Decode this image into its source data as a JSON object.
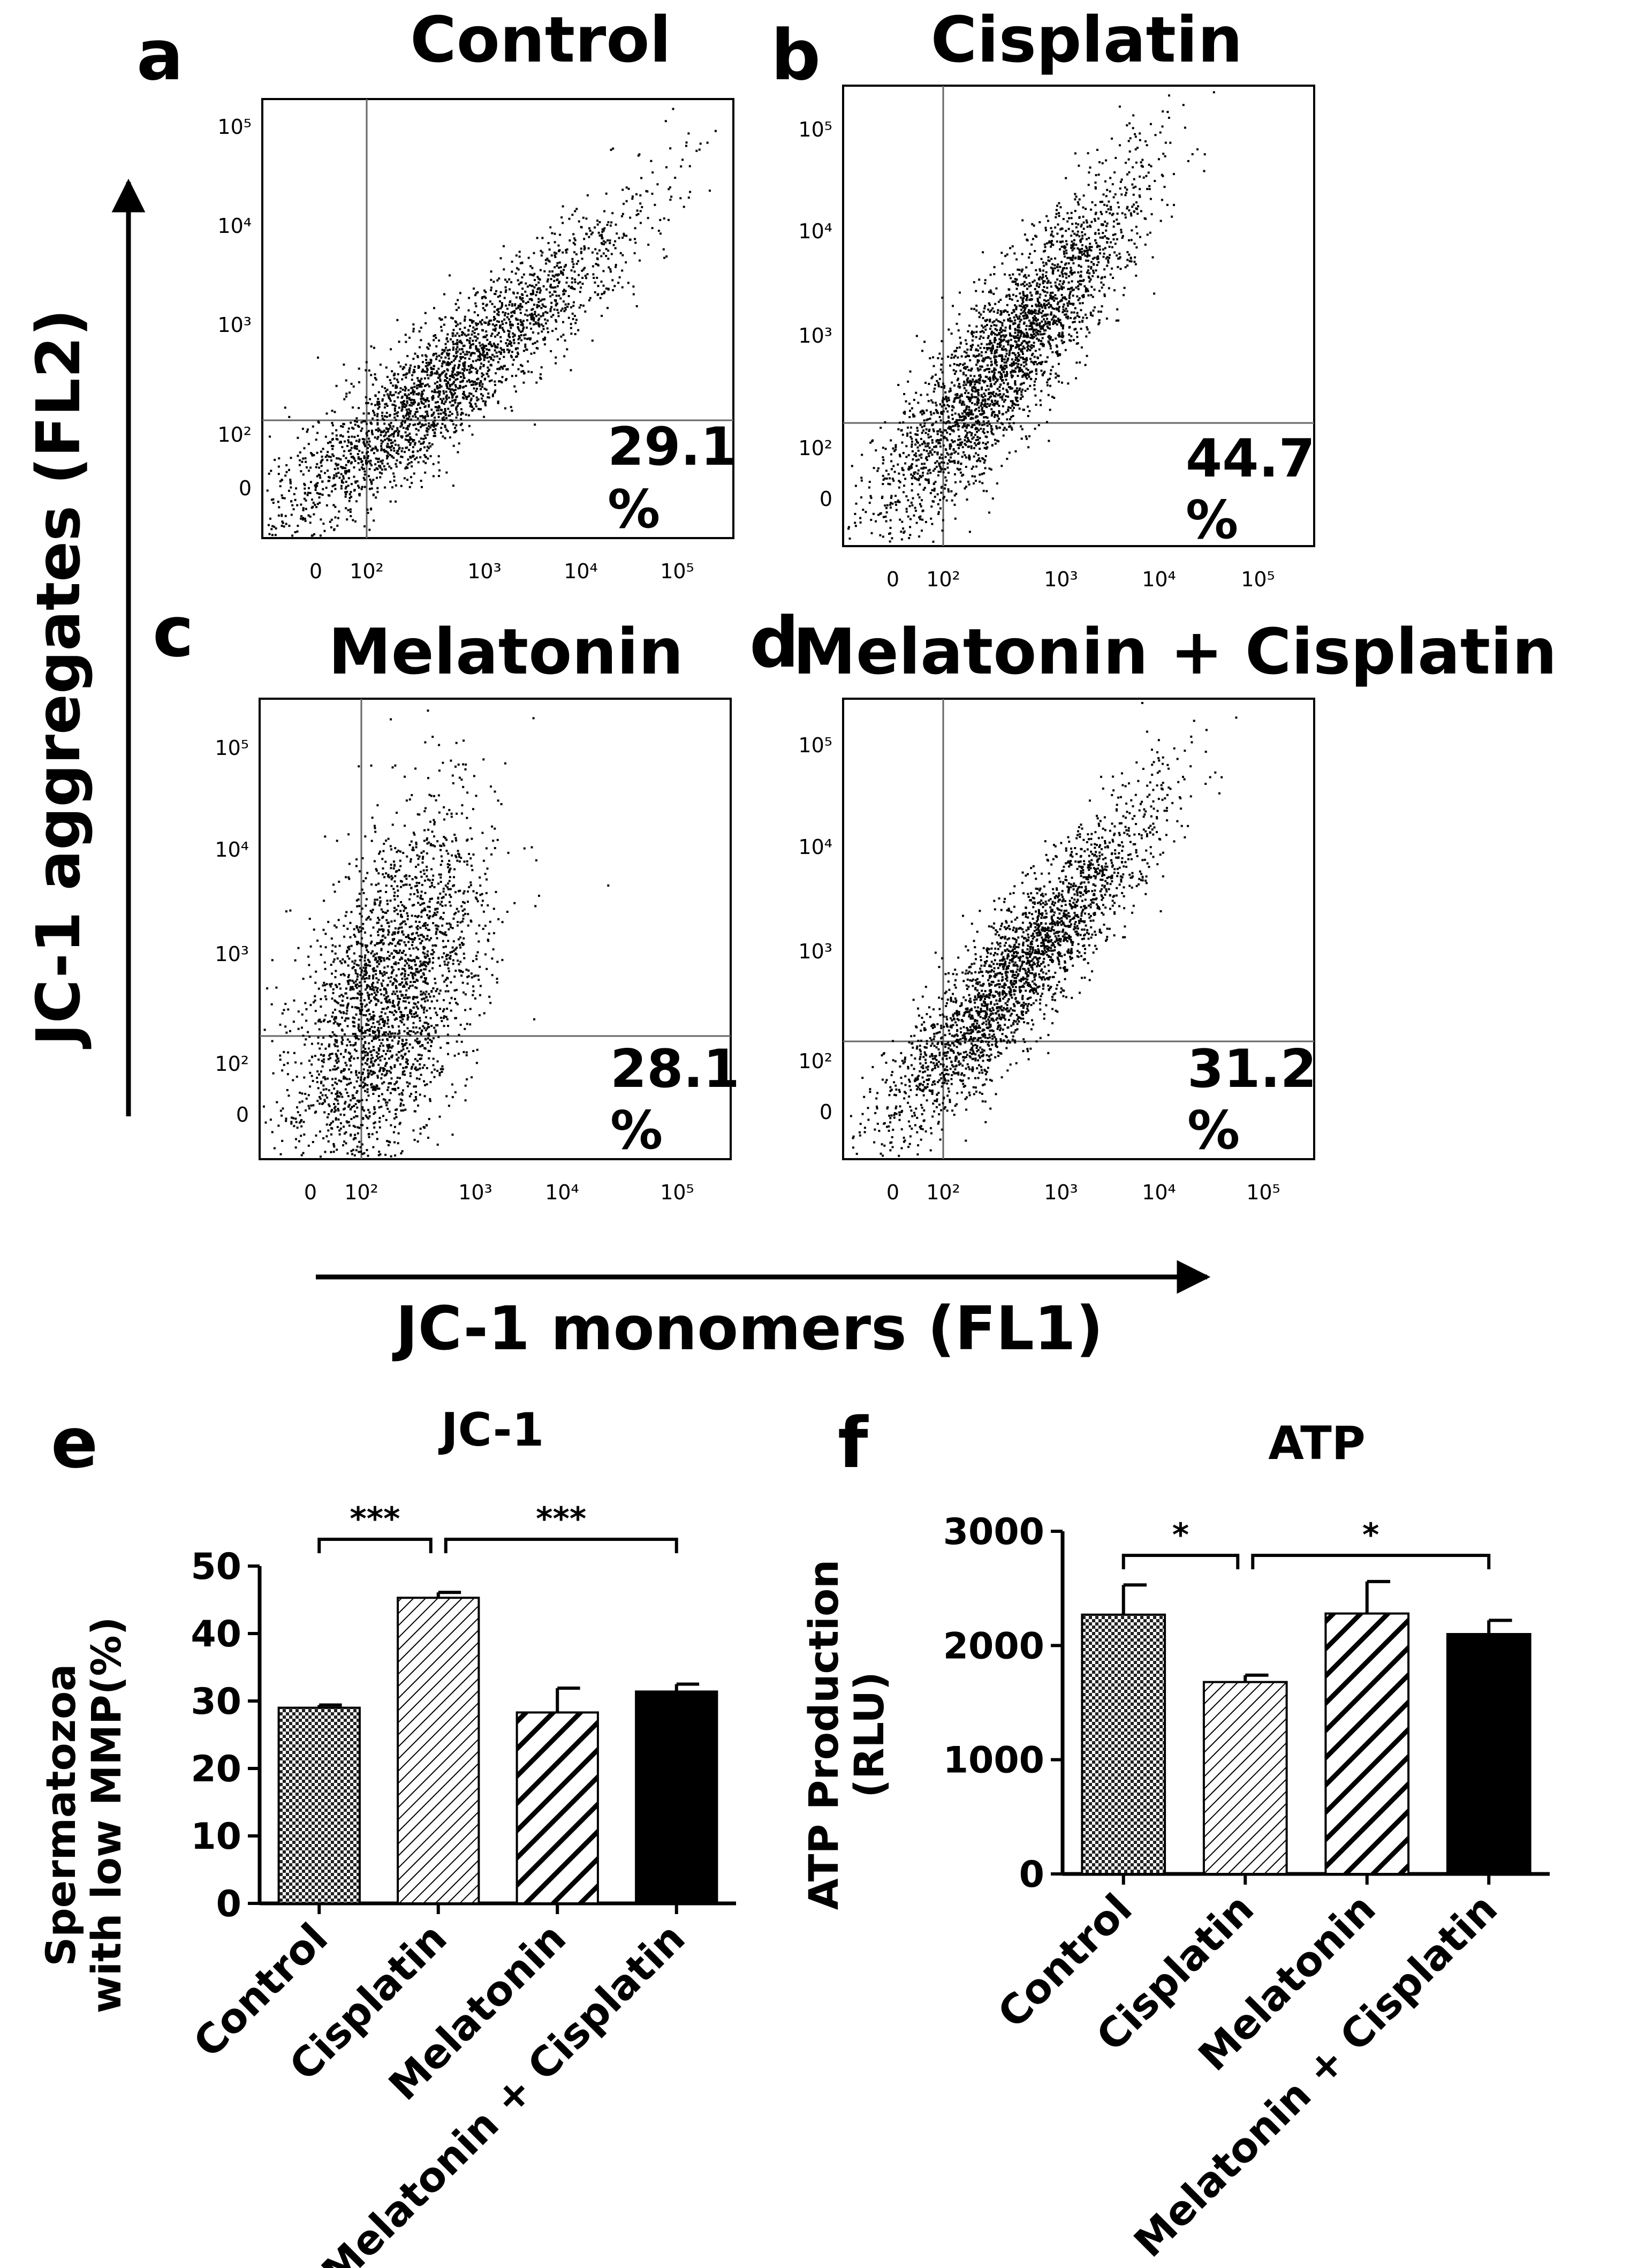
{
  "panels": {
    "a": {
      "letter": "a",
      "title": "Control",
      "quadrant_percent": "29.1",
      "percent_sign": "%"
    },
    "b": {
      "letter": "b",
      "title": "Cisplatin",
      "quadrant_percent": "44.7",
      "percent_sign": "%"
    },
    "c": {
      "letter": "c",
      "title": "Melatonin",
      "quadrant_percent": "28.1",
      "percent_sign": "%"
    },
    "d": {
      "letter": "d",
      "title": "Melatonin + Cisplatin",
      "quadrant_percent": "31.2",
      "percent_sign": "%"
    }
  },
  "flow_axes": {
    "xlabel": "JC-1 monomers (FL1)",
    "ylabel": "JC-1 aggregates (FL2)",
    "tick_labels": [
      "0",
      "10²",
      "10³",
      "10⁴",
      "10⁵"
    ]
  },
  "chart_data": [
    {
      "type": "bar",
      "panel": "e",
      "title": "JC-1",
      "ylabel_lines": [
        "Spermatozoa",
        "with low MMP(%)"
      ],
      "categories": [
        "Control",
        "Cisplatin",
        "Melatonin",
        "Melatonin + Cisplatin"
      ],
      "values": [
        29,
        45.3,
        28.3,
        31.4
      ],
      "errors": [
        0.4,
        0.8,
        3.6,
        1.1
      ],
      "ylim": [
        0,
        50
      ],
      "yticks": [
        "0",
        "10",
        "20",
        "30",
        "40",
        "50"
      ],
      "significance": [
        {
          "from": 0,
          "to": 1,
          "label": "***"
        },
        {
          "from": 1,
          "to": 3,
          "label": "***"
        }
      ]
    },
    {
      "type": "bar",
      "panel": "f",
      "title": "ATP",
      "ylabel_lines": [
        "ATP Production",
        "(RLU)"
      ],
      "categories": [
        "Control",
        "Cisplatin",
        "Melatonin",
        "Melatonin + Cisplatin"
      ],
      "values": [
        2270,
        1680,
        2280,
        2100
      ],
      "errors": [
        260,
        60,
        280,
        120
      ],
      "ylim": [
        0,
        3000
      ],
      "yticks": [
        "0",
        "1000",
        "2000",
        "3000"
      ],
      "significance": [
        {
          "from": 0,
          "to": 1,
          "label": "*"
        },
        {
          "from": 1,
          "to": 3,
          "label": "*"
        }
      ]
    }
  ],
  "colors": {
    "ink": "#000000",
    "background": "#ffffff"
  },
  "fill_patterns": [
    "crosshatch",
    "fine-diagonal",
    "bold-diagonal",
    "solid-black"
  ]
}
